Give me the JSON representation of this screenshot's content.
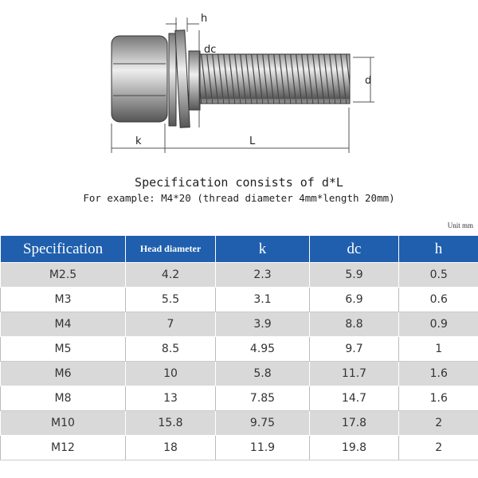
{
  "diagram": {
    "labels": {
      "h": "h",
      "dc": "dc",
      "d": "d",
      "k": "k",
      "L": "L"
    }
  },
  "caption": {
    "line1": "Specification consists of d*L",
    "line2": "For example: M4*20 (thread diameter 4mm*length 20mm)"
  },
  "unit": "Unit mm",
  "table": {
    "header": [
      "Specification",
      "Head diameter",
      "k",
      "dc",
      "h"
    ],
    "rows": [
      [
        "M2.5",
        "4.2",
        "2.3",
        "5.9",
        "0.5"
      ],
      [
        "M3",
        "5.5",
        "3.1",
        "6.9",
        "0.6"
      ],
      [
        "M4",
        "7",
        "3.9",
        "8.8",
        "0.9"
      ],
      [
        "M5",
        "8.5",
        "4.95",
        "9.7",
        "1"
      ],
      [
        "M6",
        "10",
        "5.8",
        "11.7",
        "1.6"
      ],
      [
        "M8",
        "13",
        "7.85",
        "14.7",
        "1.6"
      ],
      [
        "M10",
        "15.8",
        "9.75",
        "17.8",
        "2"
      ],
      [
        "M12",
        "18",
        "11.9",
        "19.8",
        "2"
      ]
    ]
  }
}
